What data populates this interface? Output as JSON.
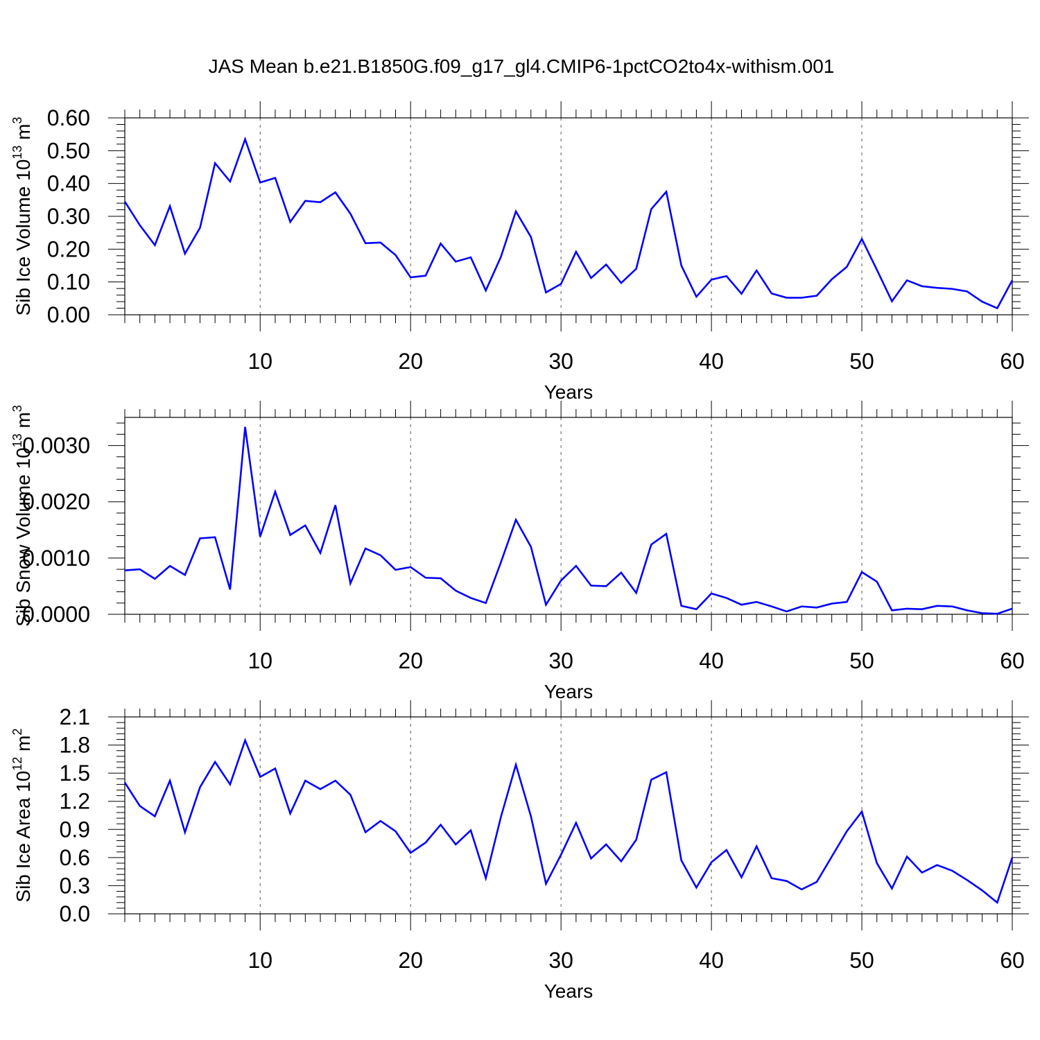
{
  "title": "JAS Mean b.e21.B1850G.f09_g17_gl4.CMIP6-1pctCO2to4x-withism.001",
  "colors": {
    "line": "#0000ff",
    "axis": "#000000",
    "grid": "#555555",
    "background": "#ffffff"
  },
  "chart_data": [
    {
      "type": "line",
      "ylabel_main": "Sib Ice Volume 10",
      "ylabel_exp": "13",
      "ylabel_unit": " m",
      "ylabel_unit_exp": "3",
      "xlabel": "Years",
      "xlim": [
        1,
        60
      ],
      "ylim": [
        0,
        0.6
      ],
      "yticks": [
        0,
        0.1,
        0.2,
        0.3,
        0.4,
        0.5,
        0.6
      ],
      "yticklabels": [
        "0.00",
        "0.10",
        "0.20",
        "0.30",
        "0.40",
        "0.50",
        "0.60"
      ],
      "xticks": [
        10,
        20,
        30,
        40,
        50,
        60
      ],
      "xticklabels": [
        "10",
        "20",
        "30",
        "40",
        "50",
        "60"
      ],
      "grid": "vertical dashed at major x ticks",
      "series": [
        {
          "name": "Sib Ice Volume",
          "x": [
            1,
            2,
            3,
            4,
            5,
            6,
            7,
            8,
            9,
            10,
            11,
            12,
            13,
            14,
            15,
            16,
            17,
            18,
            19,
            20,
            21,
            22,
            23,
            24,
            25,
            26,
            27,
            28,
            29,
            30,
            31,
            32,
            33,
            34,
            35,
            36,
            37,
            38,
            39,
            40,
            41,
            42,
            43,
            44,
            45,
            46,
            47,
            48,
            49,
            50,
            51,
            52,
            53,
            54,
            55,
            56,
            57,
            58,
            59,
            60
          ],
          "values": [
            0.345,
            0.273,
            0.212,
            0.331,
            0.186,
            0.265,
            0.462,
            0.406,
            0.535,
            0.403,
            0.417,
            0.283,
            0.347,
            0.343,
            0.373,
            0.308,
            0.218,
            0.22,
            0.182,
            0.114,
            0.119,
            0.217,
            0.162,
            0.175,
            0.074,
            0.176,
            0.315,
            0.237,
            0.068,
            0.094,
            0.192,
            0.112,
            0.153,
            0.097,
            0.14,
            0.322,
            0.375,
            0.15,
            0.055,
            0.107,
            0.118,
            0.064,
            0.135,
            0.065,
            0.052,
            0.052,
            0.058,
            0.108,
            0.146,
            0.231,
            0.137,
            0.041,
            0.105,
            0.087,
            0.082,
            0.079,
            0.071,
            0.04,
            0.02,
            0.105
          ]
        }
      ]
    },
    {
      "type": "line",
      "ylabel_main": "Sib Snow Volume 10",
      "ylabel_exp": "13",
      "ylabel_unit": " m",
      "ylabel_unit_exp": "3",
      "xlabel": "Years",
      "xlim": [
        1,
        60
      ],
      "ylim": [
        0,
        0.0035
      ],
      "yticks": [
        0,
        0.001,
        0.002,
        0.003
      ],
      "yticklabels": [
        "0.0000",
        "0.0010",
        "0.0020",
        "0.0030"
      ],
      "xticks": [
        10,
        20,
        30,
        40,
        50,
        60
      ],
      "xticklabels": [
        "10",
        "20",
        "30",
        "40",
        "50",
        "60"
      ],
      "grid": "vertical dashed at major x ticks",
      "series": [
        {
          "name": "Sib Snow Volume",
          "x": [
            1,
            2,
            3,
            4,
            5,
            6,
            7,
            8,
            9,
            10,
            11,
            12,
            13,
            14,
            15,
            16,
            17,
            18,
            19,
            20,
            21,
            22,
            23,
            24,
            25,
            26,
            27,
            28,
            29,
            30,
            31,
            32,
            33,
            34,
            35,
            36,
            37,
            38,
            39,
            40,
            41,
            42,
            43,
            44,
            45,
            46,
            47,
            48,
            49,
            50,
            51,
            52,
            53,
            54,
            55,
            56,
            57,
            58,
            59,
            60
          ],
          "values": [
            0.00078,
            0.0008,
            0.00063,
            0.00086,
            0.0007,
            0.00135,
            0.00137,
            0.00044,
            0.00333,
            0.00138,
            0.00218,
            0.00141,
            0.00158,
            0.00109,
            0.00194,
            0.00055,
            0.00117,
            0.00105,
            0.00079,
            0.00084,
            0.00065,
            0.00064,
            0.00042,
            0.00029,
            0.0002,
            0.00092,
            0.00168,
            0.0012,
            0.00017,
            0.0006,
            0.00086,
            0.00051,
            0.0005,
            0.00074,
            0.00038,
            0.00124,
            0.00143,
            0.00015,
            9e-05,
            0.00037,
            0.00029,
            0.00017,
            0.00022,
            0.00014,
            5e-05,
            0.00014,
            0.00012,
            0.00019,
            0.00022,
            0.00075,
            0.00058,
            7e-05,
            0.0001,
            9e-05,
            0.00015,
            0.00014,
            7e-05,
            2e-05,
            1e-05,
            0.0001
          ]
        }
      ]
    },
    {
      "type": "line",
      "ylabel_main": "Sib Ice Area 10",
      "ylabel_exp": "12",
      "ylabel_unit": " m",
      "ylabel_unit_exp": "2",
      "xlabel": "Years",
      "xlim": [
        1,
        60
      ],
      "ylim": [
        0,
        2.1
      ],
      "yticks": [
        0,
        0.3,
        0.6,
        0.9,
        1.2,
        1.5,
        1.8,
        2.1
      ],
      "yticklabels": [
        "0.0",
        "0.3",
        "0.6",
        "0.9",
        "1.2",
        "1.5",
        "1.8",
        "2.1"
      ],
      "xticks": [
        10,
        20,
        30,
        40,
        50,
        60
      ],
      "xticklabels": [
        "10",
        "20",
        "30",
        "40",
        "50",
        "60"
      ],
      "grid": "vertical dashed at major x ticks",
      "series": [
        {
          "name": "Sib Ice Area",
          "x": [
            1,
            2,
            3,
            4,
            5,
            6,
            7,
            8,
            9,
            10,
            11,
            12,
            13,
            14,
            15,
            16,
            17,
            18,
            19,
            20,
            21,
            22,
            23,
            24,
            25,
            26,
            27,
            28,
            29,
            30,
            31,
            32,
            33,
            34,
            35,
            36,
            37,
            38,
            39,
            40,
            41,
            42,
            43,
            44,
            45,
            46,
            47,
            48,
            49,
            50,
            51,
            52,
            53,
            54,
            55,
            56,
            57,
            58,
            59,
            60
          ],
          "values": [
            1.4,
            1.15,
            1.04,
            1.42,
            0.87,
            1.35,
            1.62,
            1.38,
            1.85,
            1.46,
            1.55,
            1.07,
            1.42,
            1.33,
            1.42,
            1.27,
            0.87,
            0.99,
            0.88,
            0.65,
            0.76,
            0.95,
            0.74,
            0.89,
            0.38,
            1.03,
            1.59,
            1.04,
            0.32,
            0.63,
            0.97,
            0.59,
            0.74,
            0.56,
            0.79,
            1.43,
            1.51,
            0.57,
            0.28,
            0.55,
            0.68,
            0.39,
            0.72,
            0.38,
            0.35,
            0.26,
            0.34,
            0.61,
            0.88,
            1.09,
            0.54,
            0.27,
            0.61,
            0.44,
            0.52,
            0.46,
            0.36,
            0.25,
            0.12,
            0.6
          ]
        }
      ]
    }
  ]
}
